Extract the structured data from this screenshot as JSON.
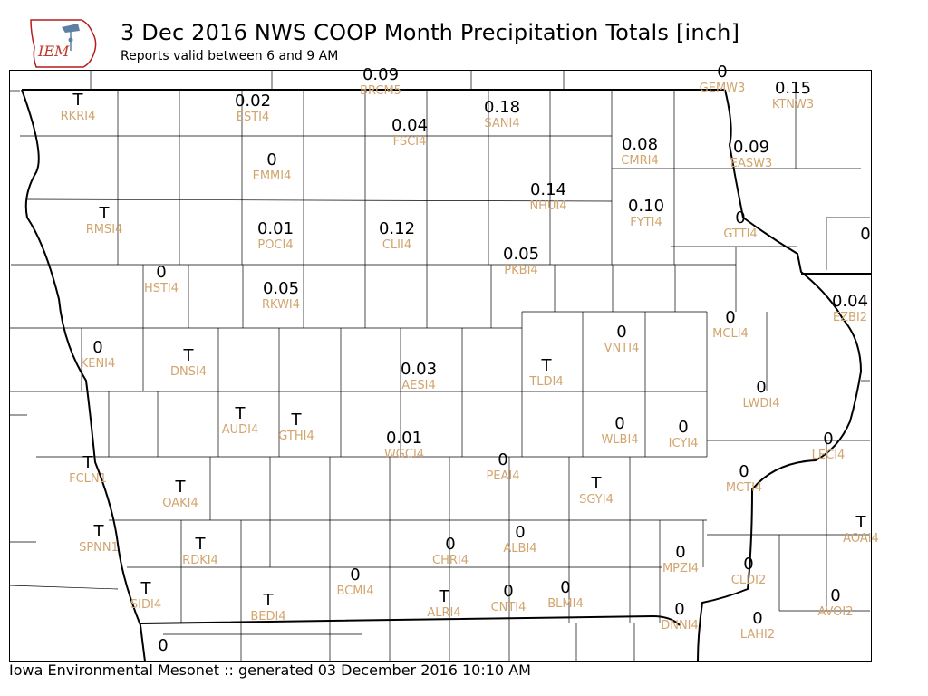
{
  "header": {
    "title": "3 Dec 2016 NWS COOP Month Precipitation Totals [inch]",
    "subtitle": "Reports valid between 6 and 9 AM",
    "logo_text": "IEM"
  },
  "footer": {
    "text": "Iowa Environmental Mesonet :: generated 03 December 2016 10:10 AM"
  },
  "colors": {
    "value": "#000000",
    "station_id": "#d2a46e",
    "logo_red": "#c0392b",
    "state_border": "#000000"
  },
  "stations": [
    {
      "id": "BRCM5",
      "value": "0.09"
    },
    {
      "id": "GEMW3",
      "value": "0"
    },
    {
      "id": "KTNW3",
      "value": "0.15"
    },
    {
      "id": "RKRI4",
      "value": "T"
    },
    {
      "id": "ESTI4",
      "value": "0.02"
    },
    {
      "id": "SANI4",
      "value": "0.18"
    },
    {
      "id": "FSCI4",
      "value": "0.04"
    },
    {
      "id": "CMRI4",
      "value": "0.08"
    },
    {
      "id": "EASW3",
      "value": "0.09"
    },
    {
      "id": "EMMI4",
      "value": "0"
    },
    {
      "id": "NHUI4",
      "value": "0.14"
    },
    {
      "id": "RMSI4",
      "value": "T"
    },
    {
      "id": "POCI4",
      "value": "0.01"
    },
    {
      "id": "CLII4",
      "value": "0.12"
    },
    {
      "id": "FYTI4",
      "value": "0.10"
    },
    {
      "id": "GTTI4",
      "value": "0"
    },
    {
      "id": "",
      "value": "0"
    },
    {
      "id": "PKBI4",
      "value": "0.05"
    },
    {
      "id": "HSTI4",
      "value": "0"
    },
    {
      "id": "RKWI4",
      "value": "0.05"
    },
    {
      "id": "EZBI2",
      "value": "0.04"
    },
    {
      "id": "MCLI4",
      "value": "0"
    },
    {
      "id": "VNTI4",
      "value": "0"
    },
    {
      "id": "KENI4",
      "value": "0"
    },
    {
      "id": "DNSI4",
      "value": "T"
    },
    {
      "id": "AESI4",
      "value": "0.03"
    },
    {
      "id": "TLDI4",
      "value": "T"
    },
    {
      "id": "LWDI4",
      "value": "0"
    },
    {
      "id": "AUDI4",
      "value": "T"
    },
    {
      "id": "GTHI4",
      "value": "T"
    },
    {
      "id": "WLBI4",
      "value": "0"
    },
    {
      "id": "ICYI4",
      "value": "0"
    },
    {
      "id": "WGCI4",
      "value": "0.01"
    },
    {
      "id": "LECI4",
      "value": "0"
    },
    {
      "id": "PEAI4",
      "value": "0"
    },
    {
      "id": "FCLN1",
      "value": "T"
    },
    {
      "id": "MCTI4",
      "value": "0"
    },
    {
      "id": "OAKI4",
      "value": "T"
    },
    {
      "id": "SGYI4",
      "value": "T"
    },
    {
      "id": "SPNN1",
      "value": "T"
    },
    {
      "id": "AOAI4",
      "value": "T"
    },
    {
      "id": "RDKI4",
      "value": "T"
    },
    {
      "id": "ALBI4",
      "value": "0"
    },
    {
      "id": "CHRI4",
      "value": "0"
    },
    {
      "id": "MPZI4",
      "value": "0"
    },
    {
      "id": "CLDI2",
      "value": "0"
    },
    {
      "id": "BCMI4",
      "value": "0"
    },
    {
      "id": "SIDI4",
      "value": "T"
    },
    {
      "id": "BLMI4",
      "value": "0"
    },
    {
      "id": "CNTI4",
      "value": "0"
    },
    {
      "id": "ALRI4",
      "value": "T"
    },
    {
      "id": "BEDI4",
      "value": "T"
    },
    {
      "id": "AVOI2",
      "value": "0"
    },
    {
      "id": "DNNI4",
      "value": "0"
    },
    {
      "id": "LAHI2",
      "value": "0"
    },
    {
      "id": "",
      "value": "0"
    }
  ]
}
